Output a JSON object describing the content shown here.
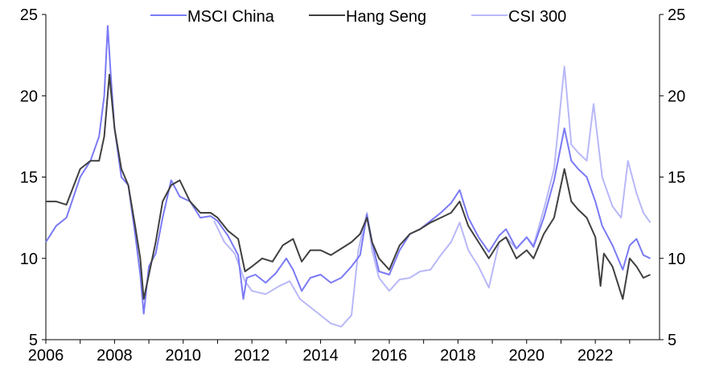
{
  "chart_data": {
    "type": "line",
    "title": "",
    "xlabel": "",
    "ylabel": "",
    "xlim": [
      2006,
      2023.87
    ],
    "ylim": [
      5,
      25
    ],
    "y2lim": [
      5,
      25
    ],
    "xticks": [
      "2006",
      "2008",
      "2010",
      "2012",
      "2014",
      "2016",
      "2018",
      "2020",
      "2022"
    ],
    "yticks": [
      "5",
      "10",
      "15",
      "20",
      "25"
    ],
    "legend_position": "top",
    "grid": false,
    "series": [
      {
        "name": "MSCI China",
        "color": "#7a7af5",
        "x": [
          2006,
          2006.3,
          2006.6,
          2007,
          2007.3,
          2007.55,
          2007.7,
          2007.8,
          2007.9,
          2008.0,
          2008.2,
          2008.4,
          2008.6,
          2008.75,
          2008.85,
          2009.0,
          2009.2,
          2009.4,
          2009.65,
          2009.9,
          2010.2,
          2010.5,
          2010.8,
          2011.0,
          2011.3,
          2011.6,
          2011.75,
          2011.85,
          2012.1,
          2012.4,
          2012.7,
          2013.0,
          2013.2,
          2013.45,
          2013.7,
          2014.0,
          2014.3,
          2014.6,
          2014.9,
          2015.15,
          2015.35,
          2015.5,
          2015.7,
          2016.0,
          2016.3,
          2016.6,
          2016.9,
          2017.2,
          2017.5,
          2017.8,
          2018.05,
          2018.3,
          2018.6,
          2018.9,
          2019.2,
          2019.4,
          2019.7,
          2020.0,
          2020.2,
          2020.5,
          2020.8,
          2021.1,
          2021.3,
          2021.5,
          2021.75,
          2022.0,
          2022.2,
          2022.5,
          2022.8,
          2023.0,
          2023.2,
          2023.4,
          2023.6
        ],
        "values": [
          11,
          12,
          12.5,
          15,
          16,
          17.5,
          20,
          24.3,
          21,
          18,
          15,
          14.5,
          11.5,
          9,
          6.6,
          9.5,
          10.3,
          12.5,
          14.8,
          13.8,
          13.5,
          12.5,
          12.6,
          12.3,
          11.4,
          10.2,
          7.5,
          8.8,
          9,
          8.5,
          9.1,
          10,
          9.3,
          8,
          8.8,
          9,
          8.5,
          8.8,
          9.5,
          10.2,
          12.7,
          11,
          9.2,
          9,
          10.5,
          11.5,
          11.8,
          12.3,
          12.8,
          13.4,
          14.2,
          12.5,
          11.3,
          10.4,
          11.4,
          11.8,
          10.6,
          11.3,
          10.7,
          12.5,
          14.8,
          18,
          16,
          15.5,
          15,
          13.5,
          12,
          10.8,
          9.3,
          10.8,
          11.2,
          10.2,
          10
        ]
      },
      {
        "name": "Hang Seng",
        "color": "#404040",
        "x": [
          2006,
          2006.3,
          2006.6,
          2007,
          2007.3,
          2007.55,
          2007.7,
          2007.85,
          2008.0,
          2008.2,
          2008.4,
          2008.6,
          2008.75,
          2008.85,
          2009.0,
          2009.2,
          2009.4,
          2009.65,
          2009.9,
          2010.2,
          2010.5,
          2010.8,
          2011.0,
          2011.3,
          2011.6,
          2011.8,
          2012.0,
          2012.3,
          2012.6,
          2012.9,
          2013.2,
          2013.45,
          2013.7,
          2014.0,
          2014.3,
          2014.6,
          2014.9,
          2015.15,
          2015.35,
          2015.5,
          2015.7,
          2016.0,
          2016.3,
          2016.6,
          2016.9,
          2017.2,
          2017.5,
          2017.8,
          2018.05,
          2018.3,
          2018.6,
          2018.9,
          2019.2,
          2019.4,
          2019.7,
          2020.0,
          2020.2,
          2020.5,
          2020.8,
          2021.1,
          2021.3,
          2021.5,
          2021.75,
          2022.0,
          2022.15,
          2022.25,
          2022.5,
          2022.8,
          2023.0,
          2023.2,
          2023.4,
          2023.6
        ],
        "values": [
          13.5,
          13.5,
          13.3,
          15.5,
          16,
          16,
          17.5,
          21.3,
          18,
          15.5,
          14.5,
          12,
          10,
          7.5,
          9,
          11,
          13.5,
          14.5,
          14.8,
          13.5,
          12.8,
          12.8,
          12.5,
          11.7,
          11.2,
          9.2,
          9.5,
          10,
          9.8,
          10.8,
          11.2,
          9.8,
          10.5,
          10.5,
          10.2,
          10.6,
          11,
          11.5,
          12.5,
          11,
          10,
          9.3,
          10.8,
          11.5,
          11.8,
          12.2,
          12.5,
          12.8,
          13.5,
          12,
          11,
          10,
          11,
          11.3,
          10,
          10.5,
          10,
          11.5,
          12.5,
          15.5,
          13.5,
          13,
          12.5,
          11.3,
          8.3,
          10.3,
          9.5,
          7.5,
          10,
          9.5,
          8.8,
          9
        ]
      },
      {
        "name": "CSI 300",
        "color": "#b8b8f8",
        "x": [
          2010.9,
          2011.2,
          2011.5,
          2011.8,
          2012.0,
          2012.4,
          2012.8,
          2013.1,
          2013.4,
          2013.7,
          2014.0,
          2014.3,
          2014.6,
          2014.9,
          2015.1,
          2015.35,
          2015.5,
          2015.7,
          2016.0,
          2016.3,
          2016.6,
          2016.9,
          2017.2,
          2017.5,
          2017.8,
          2018.05,
          2018.3,
          2018.6,
          2018.9,
          2019.2,
          2019.4,
          2019.7,
          2020.0,
          2020.2,
          2020.5,
          2020.8,
          2021.1,
          2021.3,
          2021.5,
          2021.75,
          2021.95,
          2022.2,
          2022.5,
          2022.75,
          2022.95,
          2023.2,
          2023.4,
          2023.6
        ],
        "values": [
          12.3,
          11,
          10.3,
          8.6,
          8,
          7.8,
          8.3,
          8.6,
          7.5,
          7,
          6.5,
          6,
          5.8,
          6.5,
          10.5,
          12.8,
          10.5,
          8.8,
          8,
          8.7,
          8.8,
          9.2,
          9.3,
          10.2,
          11,
          12.2,
          10.5,
          9.5,
          8.2,
          11,
          11.3,
          10.6,
          11.3,
          10.8,
          13,
          15.5,
          21.8,
          17,
          16.5,
          16,
          19.5,
          15,
          13.2,
          12.5,
          16,
          14,
          12.8,
          12.2
        ]
      }
    ]
  }
}
